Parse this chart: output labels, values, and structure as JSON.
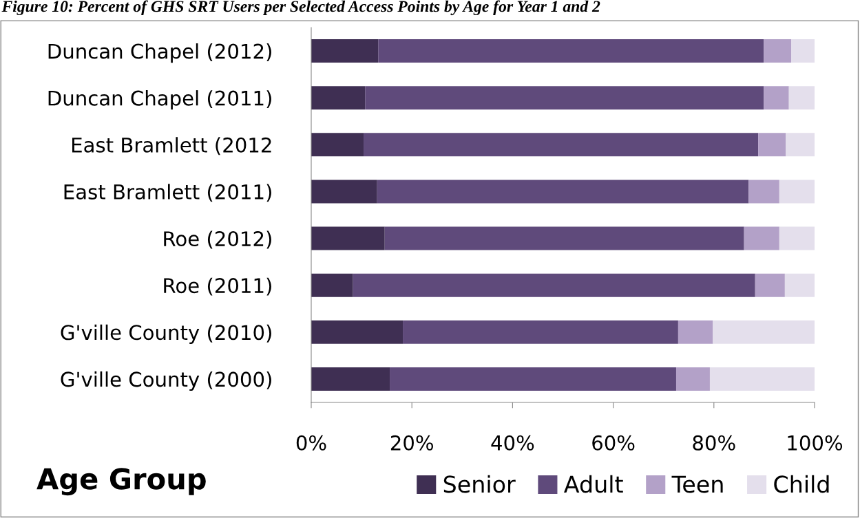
{
  "chart_data": {
    "type": "bar",
    "orientation": "horizontal",
    "stacked": true,
    "title": "Figure 10: Percent of GHS SRT Users per Selected Access Points by Age for Year 1 and 2",
    "categories": [
      "Duncan Chapel (2012)",
      "Duncan Chapel (2011)",
      "East Bramlett (2012",
      "East Bramlett (2011)",
      "Roe (2012)",
      "Roe (2011)",
      "G'ville County (2010)",
      "G'ville County (2000)"
    ],
    "series": [
      {
        "name": "Senior",
        "color": "#3f2f53",
        "values": [
          13.3,
          10.7,
          10.4,
          13.1,
          14.6,
          8.3,
          18.2,
          15.6
        ]
      },
      {
        "name": "Adult",
        "color": "#5f4a7b",
        "values": [
          76.6,
          79.2,
          78.4,
          73.8,
          71.4,
          79.9,
          54.7,
          56.9
        ]
      },
      {
        "name": "Teen",
        "color": "#b3a1c8",
        "values": [
          5.5,
          5.0,
          5.5,
          6.1,
          7.0,
          5.9,
          6.9,
          6.7
        ]
      },
      {
        "name": "Child",
        "color": "#e4dfec",
        "values": [
          4.6,
          5.1,
          5.7,
          7.0,
          7.0,
          5.9,
          20.2,
          20.8
        ]
      }
    ],
    "xlim": [
      0,
      100
    ],
    "xticks": [
      {
        "value": 0,
        "label": "0%"
      },
      {
        "value": 20,
        "label": "20%"
      },
      {
        "value": 40,
        "label": "40%"
      },
      {
        "value": 60,
        "label": "60%"
      },
      {
        "value": 80,
        "label": "80%"
      },
      {
        "value": 100,
        "label": "100%"
      }
    ],
    "legend": "bottom",
    "legend_title": "Age Group",
    "grid": false
  }
}
